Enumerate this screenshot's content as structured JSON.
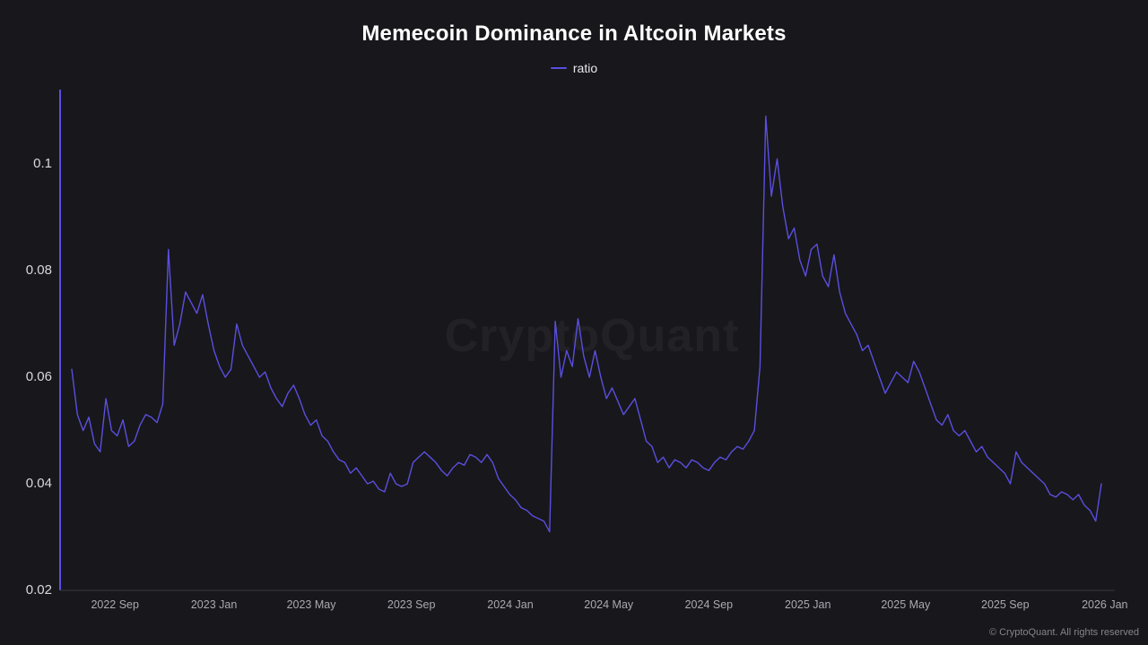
{
  "header": {
    "title": "Memecoin Dominance in Altcoin Markets"
  },
  "legend": {
    "label": "ratio"
  },
  "watermark": {
    "text": "CryptoQuant"
  },
  "footer": {
    "copyright": "© CryptoQuant. All rights reserved"
  },
  "colors": {
    "background": "#18171b",
    "line": "#5a4fe0",
    "axis_y": "#5a4fe0",
    "axis_x": "#3a3a41",
    "title": "#ffffff",
    "tick_label": "#d8d8dc"
  },
  "chart_data": {
    "type": "line",
    "title": "Memecoin Dominance in Altcoin Markets",
    "series_name": "ratio",
    "xlabel": "",
    "ylabel": "",
    "grid": false,
    "legend_position": "top-center",
    "sampling": "weekly",
    "x_start": "2022-07-10",
    "x_end": "2026-01-04",
    "ylim": [
      0.02,
      0.114
    ],
    "y_ticks": [
      {
        "value": 0.1,
        "label": "0.1"
      },
      {
        "value": 0.08,
        "label": "0.08"
      },
      {
        "value": 0.06,
        "label": "0.06"
      },
      {
        "value": 0.04,
        "label": "0.04"
      },
      {
        "value": 0.02,
        "label": "0.02"
      }
    ],
    "x_ticks": [
      {
        "week": 7.6,
        "label": "2022 Sep"
      },
      {
        "week": 25.0,
        "label": "2023 Jan"
      },
      {
        "week": 42.1,
        "label": "2023 May"
      },
      {
        "week": 59.7,
        "label": "2023 Sep"
      },
      {
        "week": 77.1,
        "label": "2024 Jan"
      },
      {
        "week": 94.4,
        "label": "2024 May"
      },
      {
        "week": 112.0,
        "label": "2024 Sep"
      },
      {
        "week": 129.4,
        "label": "2025 Jan"
      },
      {
        "week": 146.6,
        "label": "2025 May"
      },
      {
        "week": 164.1,
        "label": "2025 Sep"
      },
      {
        "week": 181.6,
        "label": "2026 Jan"
      }
    ],
    "values": [
      0.0615,
      0.053,
      0.05,
      0.0525,
      0.0475,
      0.046,
      0.056,
      0.05,
      0.049,
      0.052,
      0.047,
      0.048,
      0.051,
      0.053,
      0.0525,
      0.0515,
      0.055,
      0.084,
      0.066,
      0.07,
      0.076,
      0.074,
      0.072,
      0.0755,
      0.07,
      0.065,
      0.062,
      0.06,
      0.0615,
      0.07,
      0.066,
      0.064,
      0.062,
      0.06,
      0.061,
      0.058,
      0.056,
      0.0545,
      0.057,
      0.0585,
      0.056,
      0.053,
      0.051,
      0.052,
      0.049,
      0.048,
      0.046,
      0.0445,
      0.044,
      0.042,
      0.043,
      0.0415,
      0.04,
      0.0405,
      0.039,
      0.0385,
      0.042,
      0.04,
      0.0395,
      0.04,
      0.044,
      0.045,
      0.046,
      0.045,
      0.044,
      0.0425,
      0.0415,
      0.043,
      0.044,
      0.0435,
      0.0455,
      0.045,
      0.044,
      0.0455,
      0.044,
      0.041,
      0.0395,
      0.038,
      0.037,
      0.0355,
      0.035,
      0.034,
      0.0335,
      0.033,
      0.031,
      0.0705,
      0.06,
      0.065,
      0.062,
      0.071,
      0.064,
      0.06,
      0.065,
      0.06,
      0.056,
      0.058,
      0.0555,
      0.053,
      0.0545,
      0.056,
      0.052,
      0.048,
      0.047,
      0.044,
      0.045,
      0.043,
      0.0445,
      0.044,
      0.043,
      0.0445,
      0.044,
      0.043,
      0.0425,
      0.044,
      0.045,
      0.0445,
      0.046,
      0.047,
      0.0465,
      0.048,
      0.05,
      0.062,
      0.109,
      0.094,
      0.101,
      0.092,
      0.086,
      0.088,
      0.082,
      0.079,
      0.084,
      0.085,
      0.079,
      0.077,
      0.083,
      0.076,
      0.072,
      0.07,
      0.068,
      0.065,
      0.066,
      0.063,
      0.06,
      0.057,
      0.059,
      0.061,
      0.06,
      0.059,
      0.063,
      0.061,
      0.058,
      0.055,
      0.052,
      0.051,
      0.053,
      0.05,
      0.049,
      0.05,
      0.048,
      0.046,
      0.047,
      0.045,
      0.044,
      0.043,
      0.042,
      0.04,
      0.046,
      0.044,
      0.043,
      0.042,
      0.041,
      0.04,
      0.038,
      0.0375,
      0.0385,
      0.038,
      0.037,
      0.038,
      0.036,
      0.035,
      0.033,
      0.04
    ]
  }
}
